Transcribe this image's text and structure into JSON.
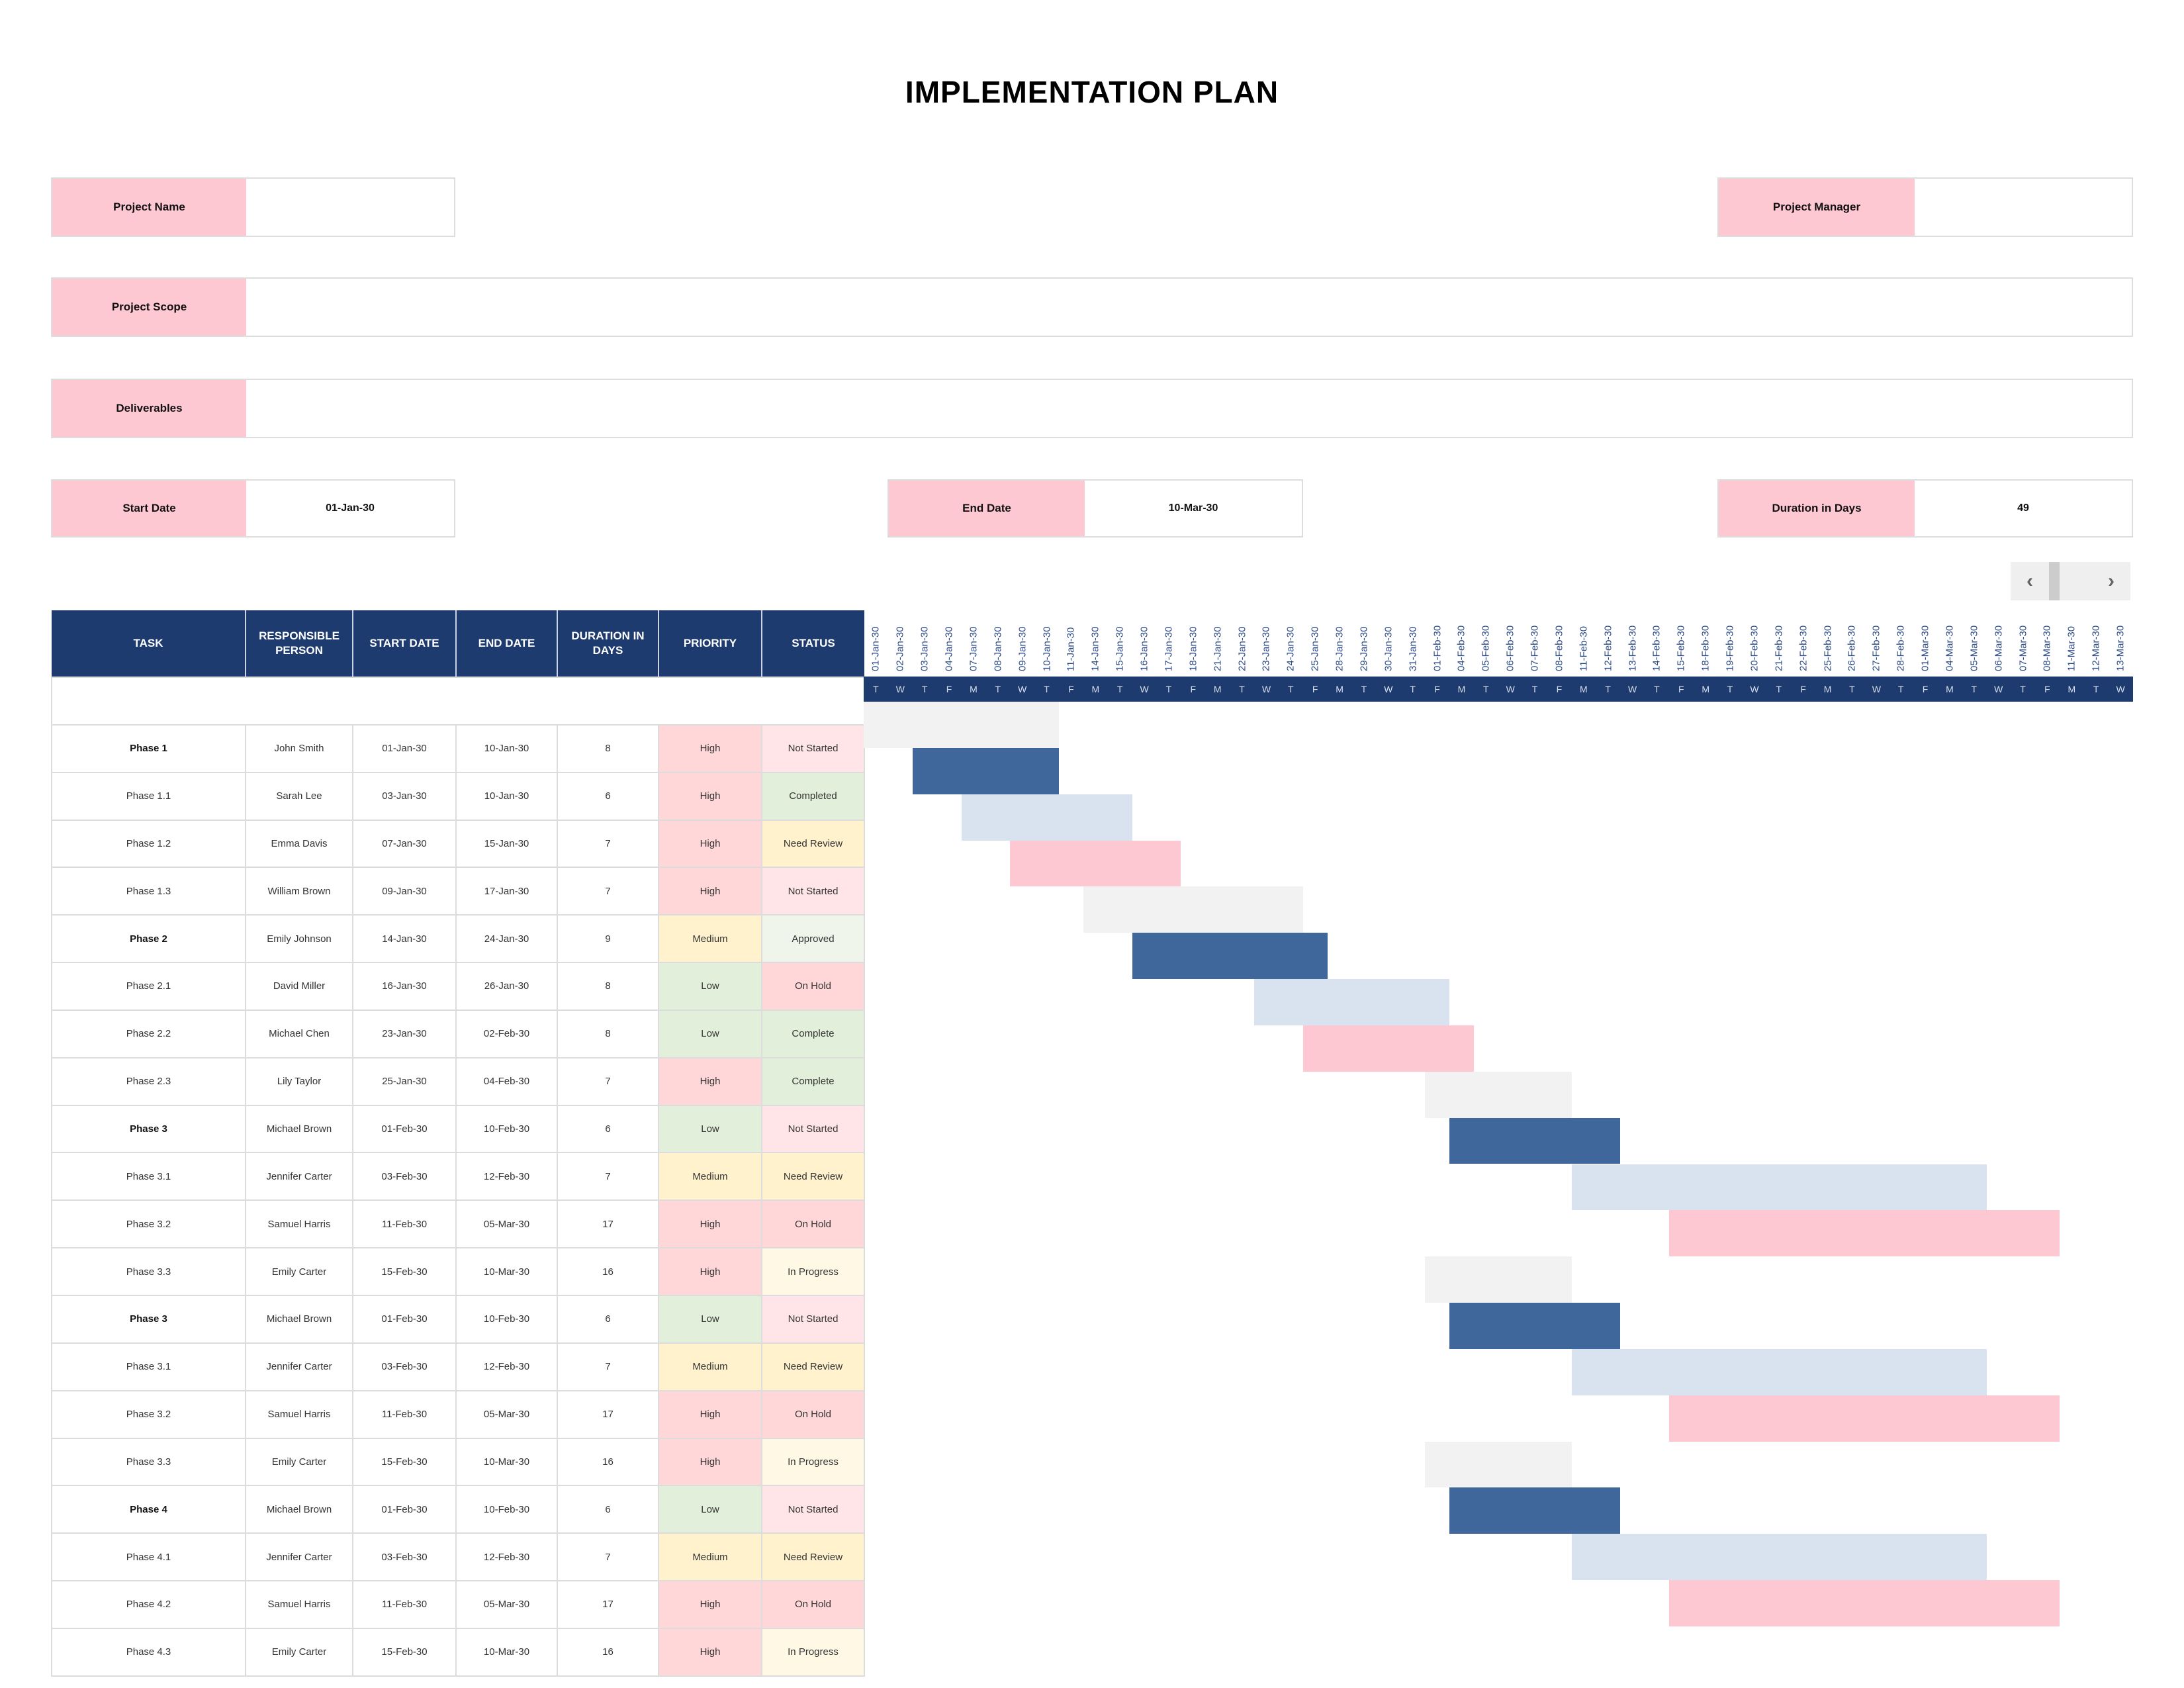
{
  "title": "IMPLEMENTATION PLAN",
  "fields": {
    "project_name": {
      "label": "Project Name",
      "value": ""
    },
    "project_manager": {
      "label": "Project Manager",
      "value": ""
    },
    "project_scope": {
      "label": "Project Scope",
      "value": ""
    },
    "deliverables": {
      "label": "Deliverables",
      "value": ""
    },
    "start_date": {
      "label": "Start Date",
      "value": "01-Jan-30"
    },
    "end_date": {
      "label": "End Date",
      "value": "10-Mar-30"
    },
    "duration": {
      "label": "Duration in Days",
      "value": "49"
    }
  },
  "scroller": {
    "left": "‹",
    "right": "›"
  },
  "table": {
    "headers": [
      "TASK",
      "RESPONSIBLE PERSON",
      "START DATE",
      "END DATE",
      "DURATION IN DAYS",
      "PRIORITY",
      "STATUS"
    ],
    "rows": [
      {
        "task": "Phase 1",
        "bold": true,
        "person": "John Smith",
        "start": "01-Jan-30",
        "end": "10-Jan-30",
        "duration": "8",
        "priority": "High",
        "status": "Not Started",
        "bar_start": 0,
        "bar_len": 8,
        "bar_type": "phase"
      },
      {
        "task": "Phase 1.1",
        "bold": false,
        "person": "Sarah Lee",
        "start": "03-Jan-30",
        "end": "10-Jan-30",
        "duration": "6",
        "priority": "High",
        "status": "Completed",
        "bar_start": 2,
        "bar_len": 6,
        "bar_type": "dark"
      },
      {
        "task": "Phase 1.2",
        "bold": false,
        "person": "Emma Davis",
        "start": "07-Jan-30",
        "end": "15-Jan-30",
        "duration": "7",
        "priority": "High",
        "status": "Need Review",
        "bar_start": 4,
        "bar_len": 7,
        "bar_type": "light"
      },
      {
        "task": "Phase 1.3",
        "bold": false,
        "person": "William Brown",
        "start": "09-Jan-30",
        "end": "17-Jan-30",
        "duration": "7",
        "priority": "High",
        "status": "Not Started",
        "bar_start": 6,
        "bar_len": 7,
        "bar_type": "pink"
      },
      {
        "task": "Phase 2",
        "bold": true,
        "person": "Emily Johnson",
        "start": "14-Jan-30",
        "end": "24-Jan-30",
        "duration": "9",
        "priority": "Medium",
        "status": "Approved",
        "bar_start": 9,
        "bar_len": 9,
        "bar_type": "phase"
      },
      {
        "task": "Phase 2.1",
        "bold": false,
        "person": "David Miller",
        "start": "16-Jan-30",
        "end": "26-Jan-30",
        "duration": "8",
        "priority": "Low",
        "status": "On Hold",
        "bar_start": 11,
        "bar_len": 8,
        "bar_type": "dark"
      },
      {
        "task": "Phase 2.2",
        "bold": false,
        "person": "Michael Chen",
        "start": "23-Jan-30",
        "end": "02-Feb-30",
        "duration": "8",
        "priority": "Low",
        "status": "Complete",
        "bar_start": 16,
        "bar_len": 8,
        "bar_type": "light"
      },
      {
        "task": "Phase 2.3",
        "bold": false,
        "person": "Lily Taylor",
        "start": "25-Jan-30",
        "end": "04-Feb-30",
        "duration": "7",
        "priority": "High",
        "status": "Complete",
        "bar_start": 18,
        "bar_len": 7,
        "bar_type": "pink"
      },
      {
        "task": "Phase 3",
        "bold": true,
        "person": "Michael Brown",
        "start": "01-Feb-30",
        "end": "10-Feb-30",
        "duration": "6",
        "priority": "Low",
        "status": "Not Started",
        "bar_start": 23,
        "bar_len": 6,
        "bar_type": "phase"
      },
      {
        "task": "Phase 3.1",
        "bold": false,
        "person": "Jennifer Carter",
        "start": "03-Feb-30",
        "end": "12-Feb-30",
        "duration": "7",
        "priority": "Medium",
        "status": "Need Review",
        "bar_start": 24,
        "bar_len": 7,
        "bar_type": "dark"
      },
      {
        "task": "Phase 3.2",
        "bold": false,
        "person": "Samuel Harris",
        "start": "11-Feb-30",
        "end": "05-Mar-30",
        "duration": "17",
        "priority": "High",
        "status": "On Hold",
        "bar_start": 29,
        "bar_len": 17,
        "bar_type": "light"
      },
      {
        "task": "Phase 3.3",
        "bold": false,
        "person": "Emily Carter",
        "start": "15-Feb-30",
        "end": "10-Mar-30",
        "duration": "16",
        "priority": "High",
        "status": "In Progress",
        "bar_start": 33,
        "bar_len": 16,
        "bar_type": "pink"
      },
      {
        "task": "Phase 3",
        "bold": true,
        "person": "Michael Brown",
        "start": "01-Feb-30",
        "end": "10-Feb-30",
        "duration": "6",
        "priority": "Low",
        "status": "Not Started",
        "bar_start": 23,
        "bar_len": 6,
        "bar_type": "phase"
      },
      {
        "task": "Phase 3.1",
        "bold": false,
        "person": "Jennifer Carter",
        "start": "03-Feb-30",
        "end": "12-Feb-30",
        "duration": "7",
        "priority": "Medium",
        "status": "Need Review",
        "bar_start": 24,
        "bar_len": 7,
        "bar_type": "dark"
      },
      {
        "task": "Phase 3.2",
        "bold": false,
        "person": "Samuel Harris",
        "start": "11-Feb-30",
        "end": "05-Mar-30",
        "duration": "17",
        "priority": "High",
        "status": "On Hold",
        "bar_start": 29,
        "bar_len": 17,
        "bar_type": "light"
      },
      {
        "task": "Phase 3.3",
        "bold": false,
        "person": "Emily Carter",
        "start": "15-Feb-30",
        "end": "10-Mar-30",
        "duration": "16",
        "priority": "High",
        "status": "In Progress",
        "bar_start": 33,
        "bar_len": 16,
        "bar_type": "pink"
      },
      {
        "task": "Phase 4",
        "bold": true,
        "person": "Michael Brown",
        "start": "01-Feb-30",
        "end": "10-Feb-30",
        "duration": "6",
        "priority": "Low",
        "status": "Not Started",
        "bar_start": 23,
        "bar_len": 6,
        "bar_type": "phase"
      },
      {
        "task": "Phase 4.1",
        "bold": false,
        "person": "Jennifer Carter",
        "start": "03-Feb-30",
        "end": "12-Feb-30",
        "duration": "7",
        "priority": "Medium",
        "status": "Need Review",
        "bar_start": 24,
        "bar_len": 7,
        "bar_type": "dark"
      },
      {
        "task": "Phase 4.2",
        "bold": false,
        "person": "Samuel Harris",
        "start": "11-Feb-30",
        "end": "05-Mar-30",
        "duration": "17",
        "priority": "High",
        "status": "On Hold",
        "bar_start": 29,
        "bar_len": 17,
        "bar_type": "light"
      },
      {
        "task": "Phase 4.3",
        "bold": false,
        "person": "Emily Carter",
        "start": "15-Feb-30",
        "end": "10-Mar-30",
        "duration": "16",
        "priority": "High",
        "status": "In Progress",
        "bar_start": 33,
        "bar_len": 16,
        "bar_type": "pink"
      }
    ]
  },
  "timeline": {
    "dates": [
      "01-Jan-30",
      "02-Jan-30",
      "03-Jan-30",
      "04-Jan-30",
      "07-Jan-30",
      "08-Jan-30",
      "09-Jan-30",
      "10-Jan-30",
      "11-Jan-30",
      "14-Jan-30",
      "15-Jan-30",
      "16-Jan-30",
      "17-Jan-30",
      "18-Jan-30",
      "21-Jan-30",
      "22-Jan-30",
      "23-Jan-30",
      "24-Jan-30",
      "25-Jan-30",
      "28-Jan-30",
      "29-Jan-30",
      "30-Jan-30",
      "31-Jan-30",
      "01-Feb-30",
      "04-Feb-30",
      "05-Feb-30",
      "06-Feb-30",
      "07-Feb-30",
      "08-Feb-30",
      "11-Feb-30",
      "12-Feb-30",
      "13-Feb-30",
      "14-Feb-30",
      "15-Feb-30",
      "18-Feb-30",
      "19-Feb-30",
      "20-Feb-30",
      "21-Feb-30",
      "22-Feb-30",
      "25-Feb-30",
      "26-Feb-30",
      "27-Feb-30",
      "28-Feb-30",
      "01-Mar-30",
      "04-Mar-30",
      "05-Mar-30",
      "06-Mar-30",
      "07-Mar-30",
      "08-Mar-30",
      "11-Mar-30",
      "12-Mar-30",
      "13-Mar-30"
    ],
    "weekdays": [
      "T",
      "W",
      "T",
      "F",
      "M",
      "T",
      "W",
      "T",
      "F",
      "M",
      "T",
      "W",
      "T",
      "F",
      "M",
      "T",
      "W",
      "T",
      "F",
      "M",
      "T",
      "W",
      "T",
      "F",
      "M",
      "T",
      "W",
      "T",
      "F",
      "M",
      "T",
      "W",
      "T",
      "F",
      "M",
      "T",
      "W",
      "T",
      "F",
      "M",
      "T",
      "W",
      "T",
      "F",
      "M",
      "T",
      "W",
      "T",
      "F",
      "M",
      "T",
      "W"
    ]
  },
  "colors": {
    "header_navy": "#1e3b70",
    "label_pink": "#fec8d3",
    "bar_phase": "#f2f2f2",
    "bar_dark": "#40679c",
    "bar_light": "#d9e3ef",
    "bar_pink": "#fec8d3",
    "priority": {
      "High": "#ffd7d9",
      "Medium": "#fff2cc",
      "Low": "#e2efda"
    },
    "status": {
      "Not Started": "#ffe4e8",
      "Completed": "#e2efda",
      "Complete": "#e2efda",
      "Need Review": "#fff2cc",
      "Approved": "#f0f5ec",
      "On Hold": "#ffd7d9",
      "In Progress": "#fff8e5"
    }
  }
}
